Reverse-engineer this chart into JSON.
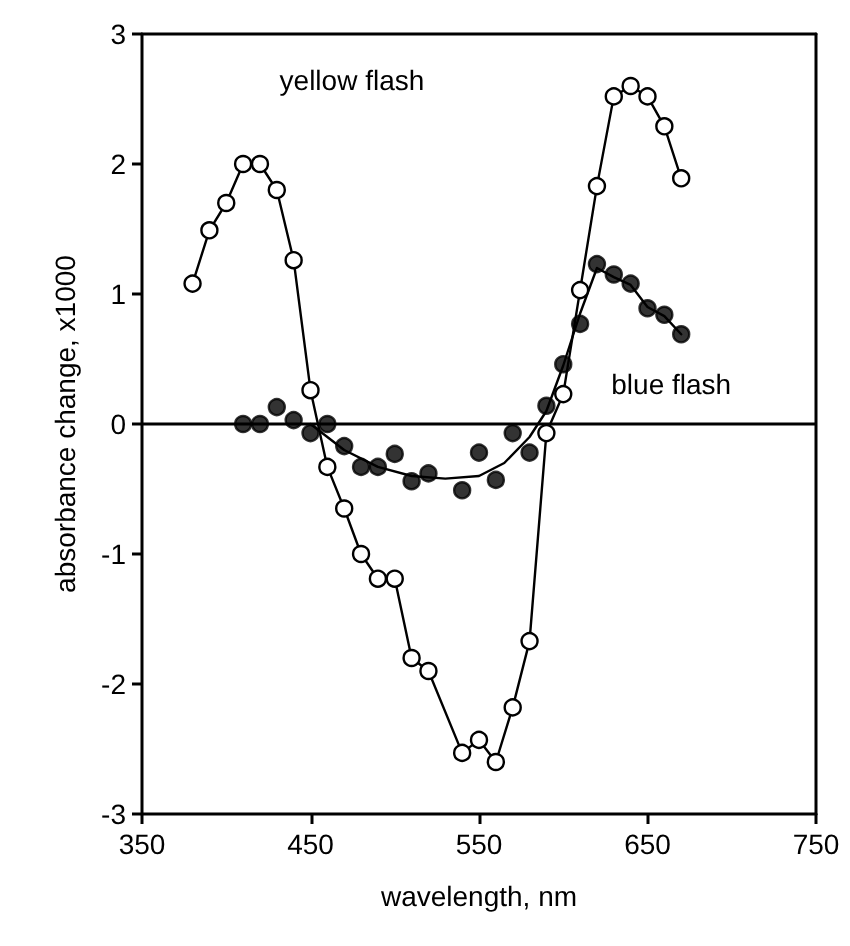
{
  "chart_data": {
    "type": "line",
    "xlabel": "wavelength, nm",
    "ylabel": "absorbance change, x1000",
    "xlim": [
      350,
      750
    ],
    "xticks": [
      350,
      450,
      550,
      650,
      750
    ],
    "ylim": [
      -3,
      3
    ],
    "yticks": [
      -3,
      -2,
      -1,
      0,
      1,
      2,
      3
    ],
    "grid": false,
    "legend": false,
    "marker": "circle",
    "line_style": "solid",
    "ref_lines": [
      {
        "axis": "y",
        "value": 0,
        "color": "#000000"
      }
    ],
    "series": [
      {
        "name": "yellow flash",
        "color": "#ffffff",
        "x": [
          380,
          390,
          400,
          410,
          420,
          430,
          440,
          450,
          460,
          470,
          480,
          490,
          500,
          510,
          520,
          540,
          550,
          560,
          570,
          580,
          590,
          600,
          610,
          620,
          630,
          640,
          650,
          660,
          670
        ],
        "values": [
          1.08,
          1.49,
          1.7,
          2.0,
          2.0,
          1.8,
          1.26,
          0.26,
          -0.33,
          -0.65,
          -1.0,
          -1.19,
          -1.19,
          -1.8,
          -1.9,
          -2.53,
          -2.43,
          -2.6,
          -2.18,
          -1.67,
          -0.07,
          0.23,
          1.03,
          1.83,
          2.52,
          2.6,
          2.52,
          2.29,
          1.89
        ]
      },
      {
        "name": "blue flash",
        "type": "scatter",
        "color": "#000000",
        "x": [
          410,
          420,
          430,
          440,
          450,
          460,
          470,
          480,
          490,
          500,
          510,
          520,
          540,
          550,
          560,
          570,
          580,
          590,
          600,
          610,
          620,
          630,
          640,
          650,
          660,
          670
        ],
        "values": [
          0,
          0,
          0.13,
          0.03,
          -0.07,
          0,
          -0.17,
          -0.33,
          -0.33,
          -0.23,
          -0.44,
          -0.38,
          -0.51,
          -0.22,
          -0.43,
          -0.07,
          -0.22,
          0.14,
          0.46,
          0.77,
          1.23,
          1.15,
          1.08,
          0.89,
          0.84,
          0.69
        ]
      },
      {
        "type": "line",
        "marker": "none",
        "color": "#000000",
        "x": [
          450,
          470,
          490,
          510,
          530,
          550,
          565,
          580,
          590,
          600,
          610,
          620,
          630,
          640,
          650,
          660,
          670
        ],
        "values": [
          0,
          -0.2,
          -0.33,
          -0.4,
          -0.42,
          -0.4,
          -0.3,
          -0.1,
          0.1,
          0.45,
          0.85,
          1.2,
          1.13,
          1.07,
          0.9,
          0.83,
          0.69
        ]
      }
    ]
  }
}
